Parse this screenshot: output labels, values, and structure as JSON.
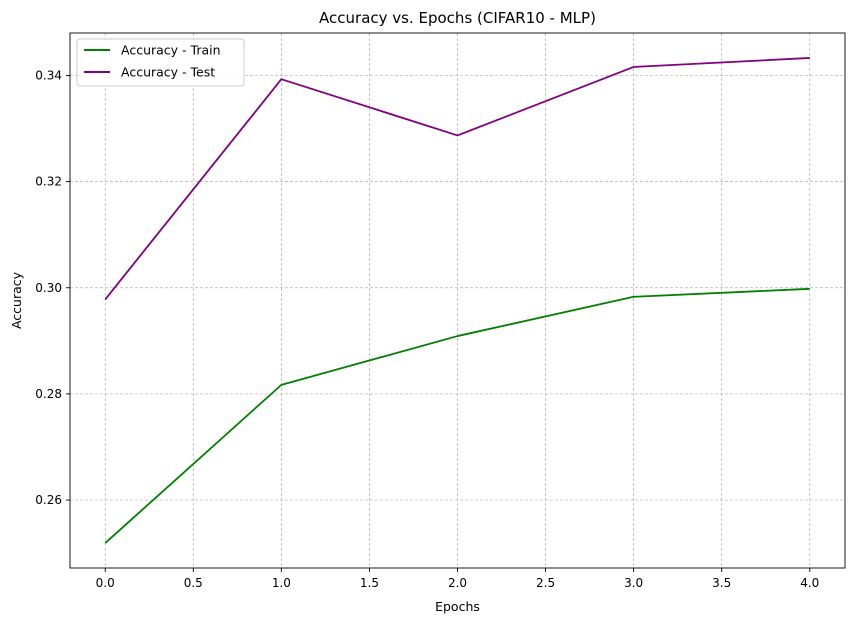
{
  "chart_data": {
    "type": "line",
    "title": "Accuracy vs. Epochs (CIFAR10 - MLP)",
    "xlabel": "Epochs",
    "ylabel": "Accuracy",
    "x": [
      0,
      1,
      2,
      3,
      4
    ],
    "xlim": [
      -0.2,
      4.2
    ],
    "ylim": [
      0.2472,
      0.348
    ],
    "xticks": [
      "0.0",
      "0.5",
      "1.0",
      "1.5",
      "2.0",
      "2.5",
      "3.0",
      "3.5",
      "4.0"
    ],
    "yticks": [
      "0.26",
      "0.28",
      "0.30",
      "0.32",
      "0.34"
    ],
    "grid": true,
    "legend_position": "top-left",
    "series": [
      {
        "name": "Accuracy - Train",
        "color": "#008000",
        "values": [
          0.2519,
          0.2817,
          0.2909,
          0.2983,
          0.2998
        ]
      },
      {
        "name": "Accuracy - Test",
        "color": "#800080",
        "values": [
          0.2978,
          0.3393,
          0.3287,
          0.3416,
          0.3433
        ]
      }
    ]
  }
}
